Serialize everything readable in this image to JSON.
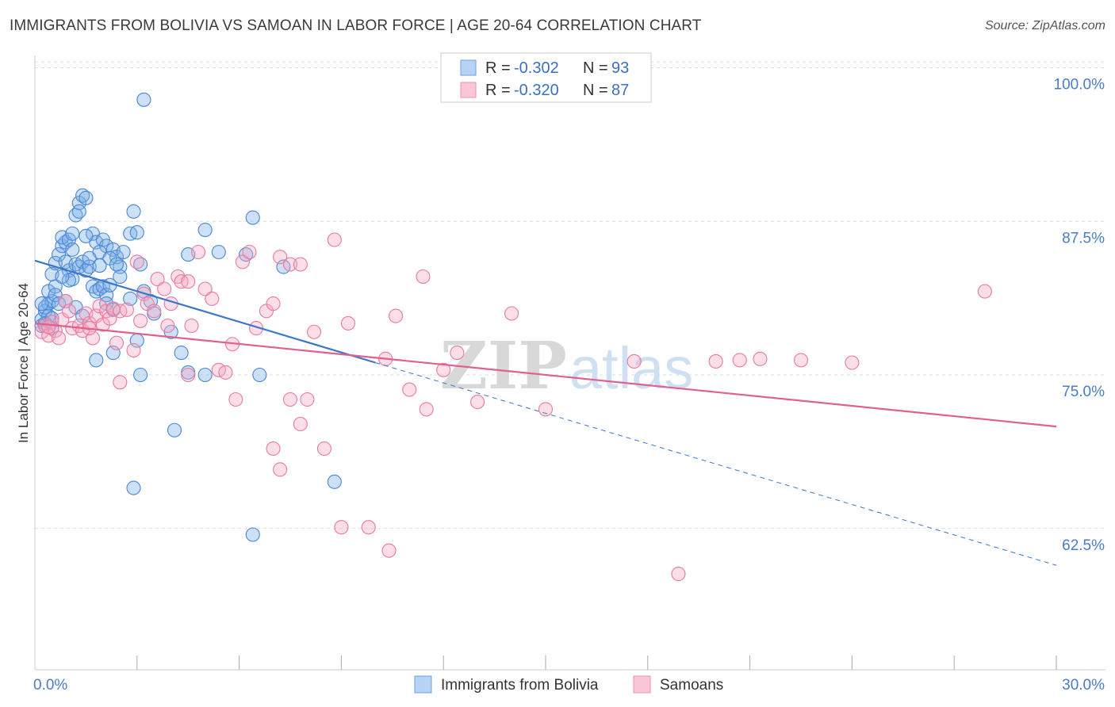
{
  "header": {
    "title": "IMMIGRANTS FROM BOLIVIA VS SAMOAN IN LABOR FORCE | AGE 20-64 CORRELATION CHART",
    "source": "Source: ZipAtlas.com"
  },
  "watermark": {
    "zip": "ZIP",
    "atlas": "atlas"
  },
  "chart_data": {
    "type": "scatter",
    "title": "IMMIGRANTS FROM BOLIVIA VS SAMOAN IN LABOR FORCE | AGE 20-64 CORRELATION CHART",
    "ylabel": "In Labor Force | Age 20-64",
    "xlabel": "",
    "xlim": [
      0,
      30
    ],
    "ylim": [
      51,
      101
    ],
    "x_tick_labels": {
      "min": "0.0%",
      "max": "30.0%"
    },
    "y_ticks": [
      {
        "value": 100,
        "label": "100.0%"
      },
      {
        "value": 87.5,
        "label": "87.5%"
      },
      {
        "value": 75,
        "label": "75.0%"
      },
      {
        "value": 62.5,
        "label": "62.5%"
      }
    ],
    "grid": true,
    "legend_placement": "top-center",
    "legend": [
      {
        "r_label": "R =",
        "r_value": "-0.302",
        "n_label": "N =",
        "n_value": "93"
      },
      {
        "r_label": "R =",
        "r_value": "-0.320",
        "n_label": "N =",
        "n_value": "87"
      }
    ],
    "series": [
      {
        "name": "Immigrants from Bolivia",
        "color": "#7aaee8",
        "stroke": "#4a86d4",
        "trend": {
          "x0": 0,
          "y0": 84.3,
          "x1": 10,
          "y1": 76.0,
          "dashed_to_x": 30,
          "dashed_to_y": 59.5,
          "color": "#3a76cc"
        },
        "points": [
          [
            0.2,
            79.5
          ],
          [
            0.3,
            80.2
          ],
          [
            0.2,
            79.0
          ],
          [
            0.4,
            80.8
          ],
          [
            0.3,
            80.5
          ],
          [
            0.5,
            81.0
          ],
          [
            0.4,
            81.8
          ],
          [
            0.6,
            82.2
          ],
          [
            0.5,
            83.2
          ],
          [
            0.6,
            84.1
          ],
          [
            0.7,
            84.8
          ],
          [
            0.8,
            85.5
          ],
          [
            0.9,
            85.8
          ],
          [
            0.8,
            86.2
          ],
          [
            1.0,
            86.0
          ],
          [
            1.1,
            86.5
          ],
          [
            0.9,
            84.2
          ],
          [
            1.0,
            83.5
          ],
          [
            1.2,
            84.0
          ],
          [
            1.1,
            82.8
          ],
          [
            1.3,
            83.8
          ],
          [
            1.4,
            84.2
          ],
          [
            1.5,
            83.5
          ],
          [
            1.6,
            83.8
          ],
          [
            1.7,
            82.2
          ],
          [
            1.8,
            81.8
          ],
          [
            1.9,
            82.0
          ],
          [
            2.0,
            82.2
          ],
          [
            2.1,
            81.5
          ],
          [
            2.2,
            82.3
          ],
          [
            1.2,
            88.0
          ],
          [
            1.3,
            89.0
          ],
          [
            1.4,
            89.6
          ],
          [
            1.5,
            89.4
          ],
          [
            1.3,
            88.3
          ],
          [
            1.7,
            86.5
          ],
          [
            1.8,
            85.8
          ],
          [
            2.0,
            86.0
          ],
          [
            2.1,
            85.5
          ],
          [
            1.9,
            85.0
          ],
          [
            2.3,
            85.2
          ],
          [
            2.4,
            84.6
          ],
          [
            2.5,
            83.8
          ],
          [
            2.6,
            85.0
          ],
          [
            2.8,
            86.5
          ],
          [
            3.0,
            86.6
          ],
          [
            2.5,
            83.0
          ],
          [
            2.2,
            84.5
          ],
          [
            0.6,
            81.5
          ],
          [
            0.4,
            79.8
          ],
          [
            0.5,
            78.8
          ],
          [
            0.7,
            80.8
          ],
          [
            1.2,
            80.5
          ],
          [
            1.4,
            79.8
          ],
          [
            2.1,
            80.8
          ],
          [
            2.3,
            80.3
          ],
          [
            2.8,
            81.2
          ],
          [
            3.2,
            81.8
          ],
          [
            3.5,
            80.0
          ],
          [
            4.0,
            78.5
          ],
          [
            4.5,
            75.2
          ],
          [
            1.8,
            76.2
          ],
          [
            2.3,
            76.8
          ],
          [
            3.0,
            77.8
          ],
          [
            3.1,
            75.0
          ],
          [
            3.4,
            81.0
          ],
          [
            3.1,
            84.0
          ],
          [
            2.9,
            88.3
          ],
          [
            3.2,
            97.4
          ],
          [
            4.3,
            76.8
          ],
          [
            4.1,
            70.5
          ],
          [
            2.9,
            65.8
          ],
          [
            4.5,
            84.8
          ],
          [
            5.0,
            75.0
          ],
          [
            5.4,
            85.0
          ],
          [
            6.4,
            87.8
          ],
          [
            6.2,
            84.8
          ],
          [
            5.0,
            86.8
          ],
          [
            6.6,
            75.0
          ],
          [
            6.4,
            62.0
          ],
          [
            7.3,
            83.8
          ],
          [
            8.8,
            66.3
          ],
          [
            1.6,
            84.5
          ],
          [
            1.0,
            82.7
          ],
          [
            0.8,
            83.0
          ],
          [
            0.2,
            80.8
          ],
          [
            0.3,
            79.2
          ],
          [
            0.5,
            79.6
          ],
          [
            2.4,
            84.0
          ],
          [
            1.5,
            86.3
          ],
          [
            1.9,
            83.9
          ],
          [
            0.9,
            81.0
          ],
          [
            1.1,
            85.2
          ]
        ]
      },
      {
        "name": "Samoans",
        "color": "#f5a7bf",
        "stroke": "#e87aa0",
        "trend": {
          "x0": 0,
          "y0": 79.2,
          "x1": 30,
          "y1": 70.8,
          "color": "#e06090"
        },
        "points": [
          [
            0.2,
            78.5
          ],
          [
            0.3,
            79.0
          ],
          [
            0.4,
            78.2
          ],
          [
            0.5,
            79.3
          ],
          [
            0.6,
            78.6
          ],
          [
            0.7,
            78.0
          ],
          [
            0.8,
            79.5
          ],
          [
            0.9,
            81.0
          ],
          [
            1.0,
            80.2
          ],
          [
            1.1,
            78.8
          ],
          [
            1.3,
            79.0
          ],
          [
            1.4,
            78.6
          ],
          [
            1.5,
            80.0
          ],
          [
            1.6,
            79.2
          ],
          [
            1.7,
            78.0
          ],
          [
            1.8,
            79.8
          ],
          [
            1.9,
            80.6
          ],
          [
            2.0,
            79.1
          ],
          [
            2.1,
            80.2
          ],
          [
            2.2,
            79.6
          ],
          [
            2.3,
            80.4
          ],
          [
            2.4,
            77.6
          ],
          [
            2.5,
            80.2
          ],
          [
            2.7,
            80.3
          ],
          [
            2.9,
            77.0
          ],
          [
            3.0,
            84.2
          ],
          [
            3.1,
            79.4
          ],
          [
            3.2,
            81.6
          ],
          [
            3.3,
            80.8
          ],
          [
            3.5,
            80.2
          ],
          [
            3.6,
            82.8
          ],
          [
            3.8,
            82.0
          ],
          [
            4.0,
            80.8
          ],
          [
            4.2,
            83.0
          ],
          [
            4.3,
            82.6
          ],
          [
            4.5,
            82.6
          ],
          [
            4.6,
            79.0
          ],
          [
            4.8,
            85.0
          ],
          [
            5.0,
            82.0
          ],
          [
            5.2,
            81.2
          ],
          [
            5.4,
            75.4
          ],
          [
            5.6,
            75.2
          ],
          [
            5.9,
            73.0
          ],
          [
            6.1,
            84.2
          ],
          [
            6.3,
            85.0
          ],
          [
            6.5,
            78.8
          ],
          [
            6.8,
            80.2
          ],
          [
            7.0,
            80.8
          ],
          [
            7.2,
            84.6
          ],
          [
            7.5,
            84.0
          ],
          [
            7.8,
            84.0
          ],
          [
            7.0,
            69.0
          ],
          [
            7.2,
            67.3
          ],
          [
            7.5,
            73.0
          ],
          [
            7.8,
            71.0
          ],
          [
            8.0,
            73.0
          ],
          [
            8.2,
            78.5
          ],
          [
            8.5,
            69.0
          ],
          [
            8.8,
            86.0
          ],
          [
            9.2,
            79.2
          ],
          [
            9.0,
            62.6
          ],
          [
            9.8,
            62.6
          ],
          [
            10.3,
            76.3
          ],
          [
            10.4,
            60.7
          ],
          [
            10.6,
            79.8
          ],
          [
            11.0,
            73.8
          ],
          [
            11.5,
            72.2
          ],
          [
            11.4,
            83.0
          ],
          [
            12.0,
            75.4
          ],
          [
            12.4,
            76.8
          ],
          [
            13.0,
            72.8
          ],
          [
            14.0,
            80.0
          ],
          [
            15.0,
            72.2
          ],
          [
            17.6,
            76.1
          ],
          [
            18.9,
            58.8
          ],
          [
            20.0,
            76.1
          ],
          [
            20.7,
            76.2
          ],
          [
            21.3,
            76.3
          ],
          [
            22.5,
            76.2
          ],
          [
            24.0,
            76.0
          ],
          [
            27.9,
            81.8
          ],
          [
            4.5,
            75.0
          ],
          [
            3.9,
            79.0
          ],
          [
            2.5,
            74.4
          ],
          [
            1.6,
            78.8
          ],
          [
            0.4,
            78.9
          ],
          [
            5.8,
            77.5
          ]
        ]
      }
    ]
  },
  "bottom_legend": [
    {
      "label": "Immigrants from Bolivia",
      "color": "#b8d4f5",
      "stroke": "#6e9fdc"
    },
    {
      "label": "Samoans",
      "color": "#f9c6d6",
      "stroke": "#e891ae"
    }
  ]
}
